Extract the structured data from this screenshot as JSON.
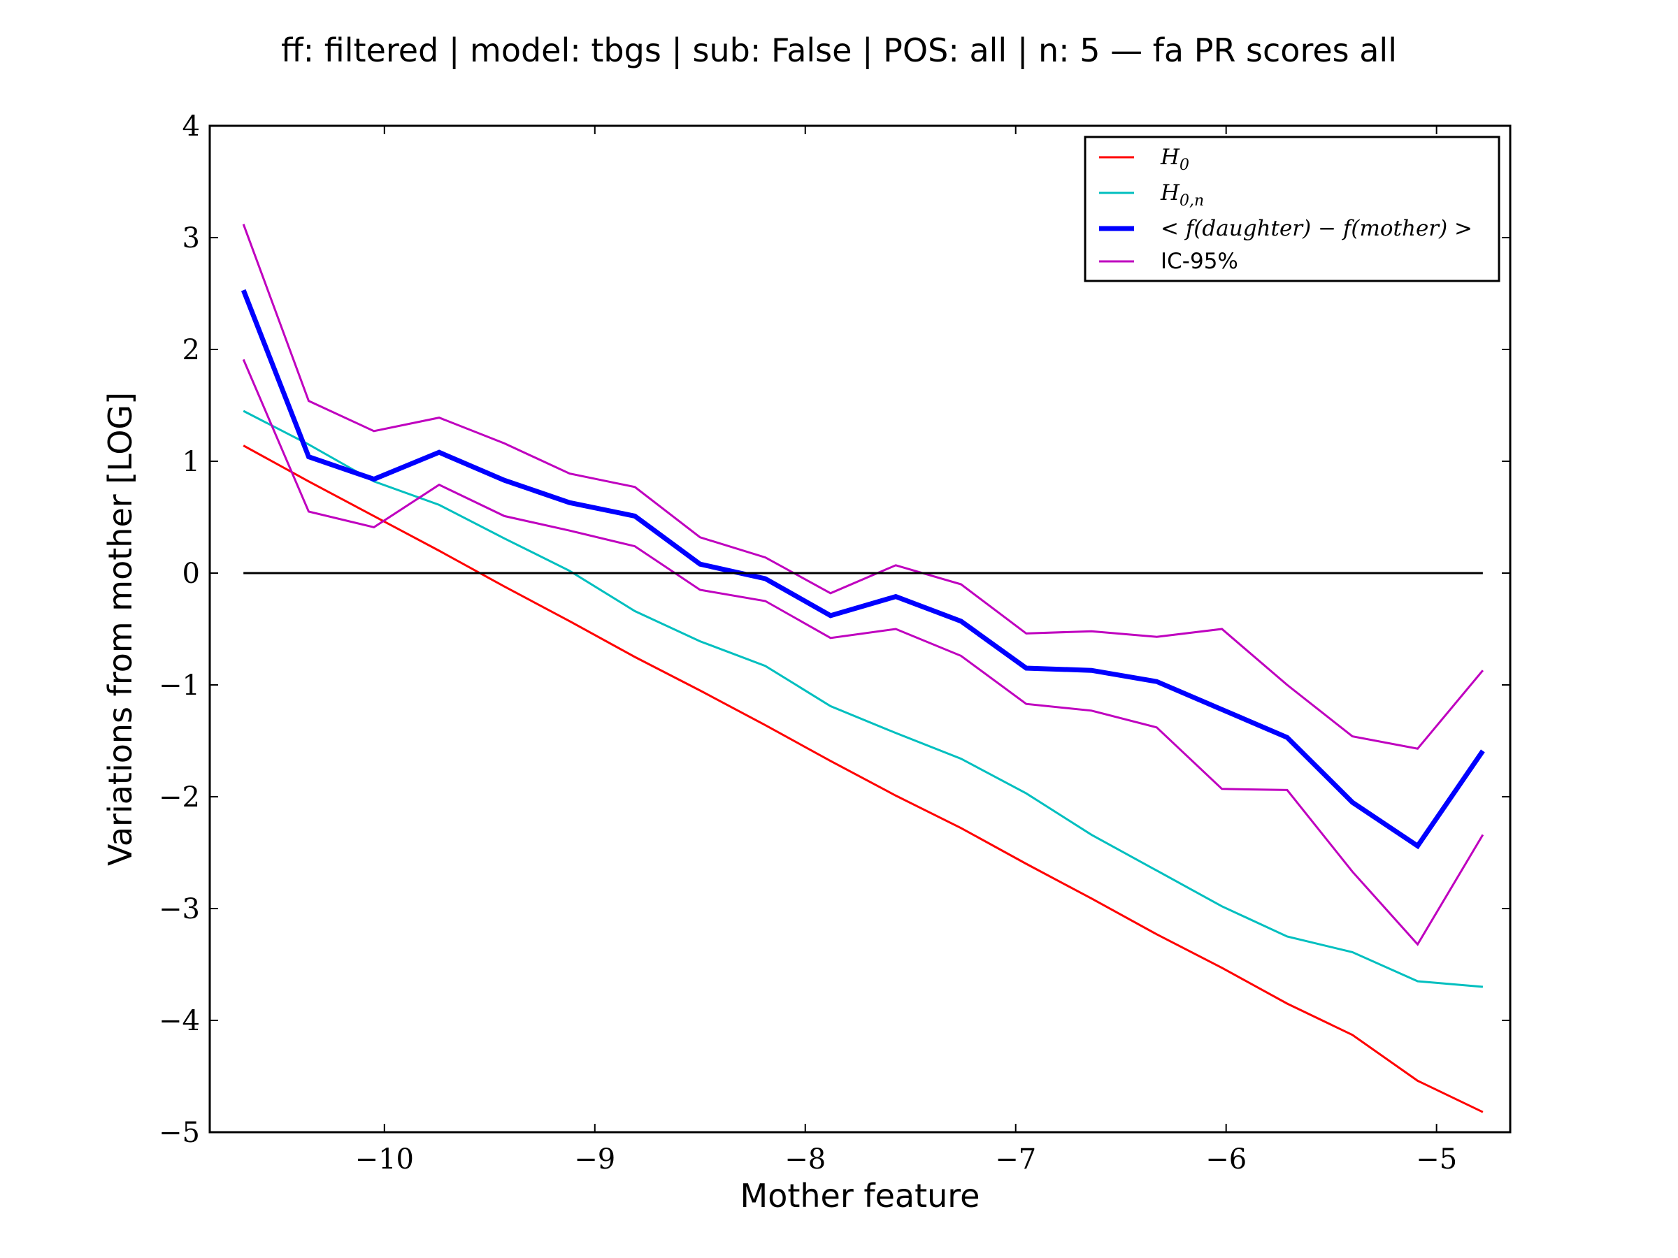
{
  "chart_data": {
    "type": "line",
    "title": "ff: filtered | model: tbgs | sub: False | POS: all | n: 5 — fa PR scores all",
    "xlabel": "Mother feature",
    "ylabel": "Variations from mother [LOG]",
    "xlim": [
      -10.83,
      -4.65
    ],
    "ylim": [
      -5,
      4
    ],
    "xticks": [
      -10,
      -9,
      -8,
      -7,
      -6,
      -5
    ],
    "xtick_labels": [
      "−10",
      "−9",
      "−8",
      "−7",
      "−6",
      "−5"
    ],
    "yticks": [
      -5,
      -4,
      -3,
      -2,
      -1,
      0,
      1,
      2,
      3,
      4
    ],
    "ytick_labels": [
      "−5",
      "−4",
      "−3",
      "−2",
      "−1",
      "0",
      "1",
      "2",
      "3",
      "4"
    ],
    "grid": false,
    "legend_position": "top-right",
    "x": [
      -10.67,
      -10.36,
      -10.05,
      -9.74,
      -9.43,
      -9.12,
      -8.81,
      -8.5,
      -8.19,
      -7.88,
      -7.57,
      -7.26,
      -6.95,
      -6.64,
      -6.33,
      -6.02,
      -5.71,
      -5.4,
      -5.09,
      -4.78
    ],
    "series": [
      {
        "name": "H_0",
        "legend_base": "H",
        "legend_sub": "0",
        "color": "#ff0000",
        "width": 3,
        "values": [
          1.14,
          0.82,
          0.51,
          0.2,
          -0.12,
          -0.43,
          -0.75,
          -1.05,
          -1.36,
          -1.68,
          -1.99,
          -2.28,
          -2.6,
          -2.91,
          -3.23,
          -3.53,
          -3.85,
          -4.13,
          -4.54,
          -4.82
        ]
      },
      {
        "name": "H_{0,n}",
        "legend_base": "H",
        "legend_sub": "0,n",
        "color": "#00bfbf",
        "width": 3,
        "values": [
          1.45,
          1.15,
          0.82,
          0.61,
          0.31,
          0.02,
          -0.34,
          -0.61,
          -0.83,
          -1.19,
          -1.43,
          -1.66,
          -1.97,
          -2.34,
          -2.66,
          -2.98,
          -3.25,
          -3.39,
          -3.65,
          -3.7
        ]
      },
      {
        "name": "< f(daughter) − f(mother) >",
        "legend_base": "< f(daughter) − f(mother) >",
        "legend_sub": "",
        "color": "#0000ff",
        "width": 7,
        "values": [
          2.53,
          1.04,
          0.84,
          1.08,
          0.83,
          0.63,
          0.51,
          0.08,
          -0.05,
          -0.38,
          -0.21,
          -0.43,
          -0.85,
          -0.87,
          -0.97,
          -1.22,
          -1.47,
          -2.05,
          -2.44,
          -1.59
        ]
      },
      {
        "name": "IC-95%",
        "legend_base": "IC-95%",
        "legend_sub": "",
        "color": "#bf00bf",
        "width": 3,
        "values": [
          3.12,
          1.54,
          1.27,
          1.39,
          1.16,
          0.89,
          0.77,
          0.32,
          0.14,
          -0.18,
          0.07,
          -0.1,
          -0.54,
          -0.52,
          -0.57,
          -0.5,
          -1.0,
          -1.46,
          -1.57,
          -0.87
        ]
      },
      {
        "name": "",
        "color": "#bf00bf",
        "width": 3,
        "values": [
          1.91,
          0.55,
          0.41,
          0.79,
          0.51,
          0.38,
          0.24,
          -0.15,
          -0.25,
          -0.58,
          -0.5,
          -0.74,
          -1.17,
          -1.23,
          -1.38,
          -1.93,
          -1.94,
          -2.67,
          -3.32,
          -2.34
        ]
      }
    ],
    "reference_line": {
      "y": 0,
      "x_range": [
        -10.67,
        -4.78
      ],
      "color": "#000000"
    }
  }
}
